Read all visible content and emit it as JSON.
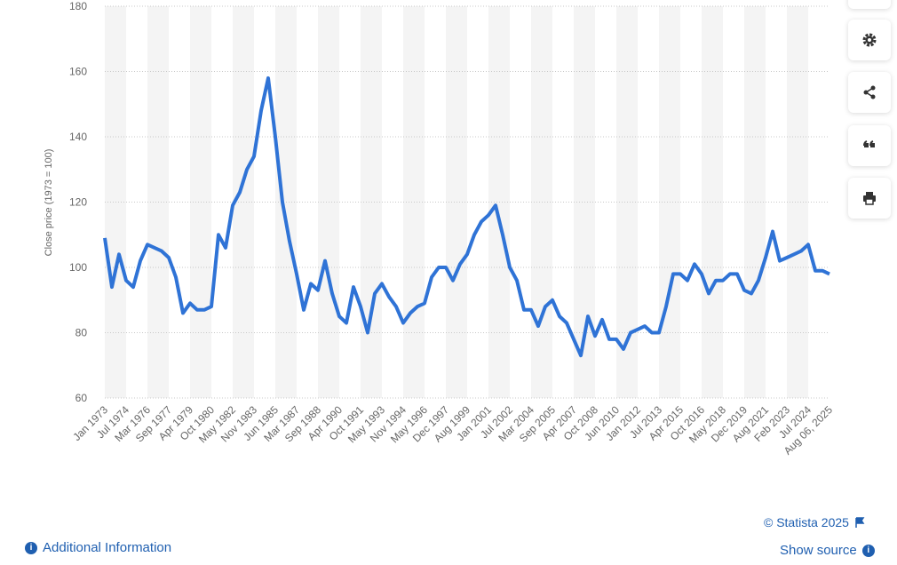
{
  "chart_data": {
    "type": "line",
    "y_label": "Close price (1973 = 100)",
    "categories": [
      "Jan 1973",
      null,
      null,
      "Jul 1974",
      null,
      null,
      "Mar 1976",
      null,
      null,
      "Sep 1977",
      null,
      null,
      "Apr 1979",
      null,
      null,
      "Oct 1980",
      null,
      null,
      "May 1982",
      null,
      null,
      "Nov 1983",
      null,
      null,
      "Jun 1985",
      null,
      null,
      "Mar 1987",
      null,
      null,
      "Sep 1988",
      null,
      null,
      "Apr 1990",
      null,
      null,
      "Oct 1991",
      null,
      null,
      "May 1993",
      null,
      null,
      "Nov 1994",
      null,
      null,
      "May 1996",
      null,
      null,
      "Dec 1997",
      null,
      null,
      "Aug 1999",
      null,
      null,
      "Jan 2001",
      null,
      null,
      "Jul 2002",
      null,
      null,
      "Mar 2004",
      null,
      null,
      "Sep 2005",
      null,
      null,
      "Apr 2007",
      null,
      null,
      "Oct 2008",
      null,
      null,
      "Jun 2010",
      null,
      null,
      "Jan 2012",
      null,
      null,
      "Jul 2013",
      null,
      null,
      "Apr 2015",
      null,
      null,
      "Oct 2016",
      null,
      null,
      "May 2018",
      null,
      null,
      "Dec 2019",
      null,
      null,
      "Aug 2021",
      null,
      null,
      "Feb 2023",
      null,
      null,
      "Jul 2024",
      null,
      null,
      "Aug 06, 2025"
    ],
    "series": [
      {
        "name": "Close price",
        "color": "#2f73d6",
        "values": [
          109,
          94,
          104,
          96,
          94,
          102,
          107,
          106,
          105,
          103,
          97,
          86,
          89,
          87,
          87,
          88,
          110,
          106,
          119,
          123,
          130,
          134,
          148,
          158,
          140,
          120,
          108,
          98,
          87,
          95,
          93,
          102,
          92,
          85,
          83,
          94,
          88,
          80,
          92,
          95,
          91,
          88,
          83,
          86,
          88,
          89,
          97,
          100,
          100,
          96,
          101,
          104,
          110,
          114,
          116,
          119,
          110,
          100,
          96,
          87,
          87,
          82,
          88,
          90,
          85,
          83,
          78,
          73,
          85,
          79,
          84,
          78,
          78,
          75,
          80,
          81,
          82,
          80,
          80,
          88,
          98,
          98,
          96,
          101,
          98,
          92,
          96,
          96,
          98,
          98,
          93,
          92,
          96,
          103,
          111,
          102,
          103,
          104,
          105,
          107,
          99,
          99,
          98
        ]
      }
    ],
    "ylim": [
      60,
      180
    ],
    "yticks": [
      60,
      80,
      100,
      120,
      140,
      160,
      180
    ],
    "grid": true,
    "copyright": "© Statista 2025",
    "show_source": "Show source",
    "additional_info": "Additional Information"
  }
}
